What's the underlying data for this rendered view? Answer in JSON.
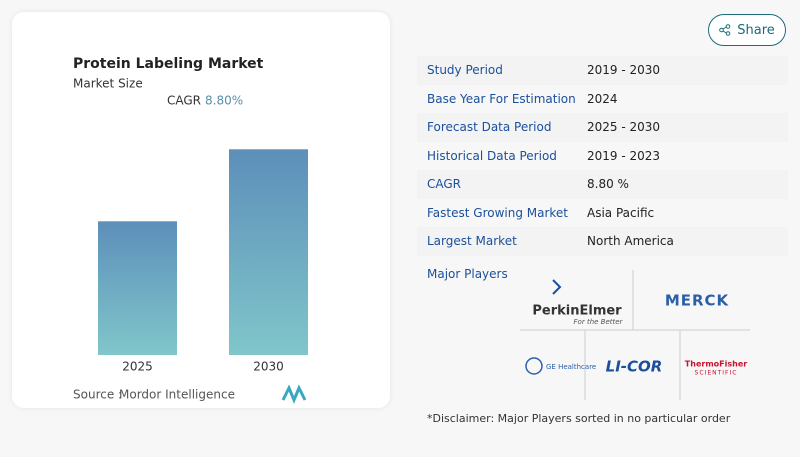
{
  "chart_data": {
    "type": "bar",
    "title": "Protein Labeling Market",
    "subtitle": "Market Size",
    "cagr_label": "CAGR",
    "cagr_value": "8.80%",
    "categories": [
      "2025",
      "2030"
    ],
    "values": [
      65,
      100
    ],
    "ylim": [
      0,
      105
    ],
    "gradient": [
      "#5d8fba",
      "#80c6ca"
    ],
    "source_label": "Source :",
    "source": "Mordor Intelligence"
  },
  "share": "Share",
  "table": {
    "rows": [
      [
        "Study Period",
        "2019 - 2030"
      ],
      [
        "Base Year For Estimation",
        "2024"
      ],
      [
        "Forecast Data Period",
        "2025 - 2030"
      ],
      [
        "Historical Data Period",
        "2019 - 2023"
      ],
      [
        "CAGR",
        "8.80 %"
      ],
      [
        "Fastest Growing Market",
        "Asia Pacific"
      ],
      [
        "Largest Market",
        "North America"
      ]
    ]
  },
  "major_players": {
    "heading": "Major Players",
    "logos": [
      "PerkinElmer",
      "For the Better",
      "MERCK",
      "GE Healthcare",
      "LI-COR",
      "ThermoFisher",
      "SCIENTIFIC"
    ]
  },
  "disclaimer": "*Disclaimer: Major Players sorted in no particular order"
}
